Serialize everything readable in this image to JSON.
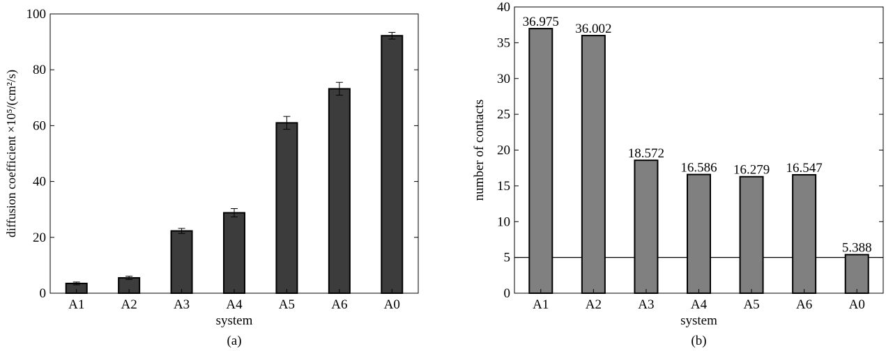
{
  "chart_data": [
    {
      "type": "bar",
      "panel_label": "(a)",
      "categories": [
        "A1",
        "A2",
        "A3",
        "A4",
        "A5",
        "A6",
        "A0"
      ],
      "values": [
        3.5,
        5.5,
        22.3,
        28.8,
        61.0,
        73.2,
        92.2
      ],
      "errors": [
        0.5,
        0.6,
        0.9,
        1.5,
        2.3,
        2.3,
        1.2
      ],
      "xlabel": "system",
      "ylabel": "diffusion coefficient ×10⁵/(cm²/s)",
      "ylim": [
        0,
        100
      ],
      "yticks": [
        0,
        20,
        40,
        60,
        80,
        100
      ],
      "bar_color": "#3c3c3c",
      "grid": false
    },
    {
      "type": "bar",
      "panel_label": "(b)",
      "categories": [
        "A1",
        "A2",
        "A3",
        "A4",
        "A5",
        "A6",
        "A0"
      ],
      "values": [
        36.975,
        36.002,
        18.572,
        16.586,
        16.279,
        16.547,
        5.388
      ],
      "data_labels": [
        "36.975",
        "36.002",
        "18.572",
        "16.586",
        "16.279",
        "16.547",
        "5.388"
      ],
      "xlabel": "system",
      "ylabel": "number of contacts",
      "ylim": [
        0,
        40
      ],
      "yticks": [
        0,
        5,
        10,
        15,
        20,
        25,
        30,
        35,
        40
      ],
      "reference_line": 5,
      "bar_color": "#808080",
      "grid": false
    }
  ]
}
